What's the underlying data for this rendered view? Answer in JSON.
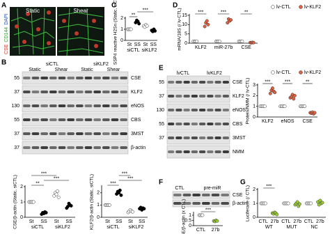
{
  "figure": {
    "panel_labels": [
      "A",
      "B",
      "C",
      "D",
      "E",
      "F",
      "G"
    ],
    "micrograph": {
      "conditions": [
        "Static",
        "Shear"
      ],
      "stain_labels": [
        "CSE",
        "CD144",
        "DAPI"
      ]
    },
    "blot_b": {
      "groups": [
        "siCTL",
        "siKLF2"
      ],
      "conditions": [
        "Static",
        "Shear",
        "Static",
        "Shear"
      ],
      "bands": [
        "CSE",
        "KLF2",
        "eNOS",
        "CBS",
        "3MST",
        "β-actin"
      ],
      "mw": [
        55,
        37,
        130,
        55,
        37,
        37
      ]
    },
    "blot_e": {
      "groups": [
        "lvCTL",
        "lvKLF2"
      ],
      "bands": [
        "CSE",
        "KLF2",
        "eNOS",
        "CBS",
        "3MST",
        "NMM"
      ],
      "mw": [
        55,
        37,
        130,
        55,
        37
      ]
    },
    "blot_f": {
      "groups": [
        "CTL",
        "pre-miR"
      ],
      "bands": [
        "CSE",
        "β-actin"
      ]
    }
  },
  "chart_data": [
    {
      "type": "dot",
      "ylabel": "CSE/β-actin (Static, siCTL)",
      "ylim": [
        0,
        2
      ],
      "yticks": [
        0,
        1,
        2
      ],
      "categories": [
        "St",
        "SS",
        "St",
        "SS"
      ],
      "groups": [
        "siCTL",
        "siKLF2"
      ],
      "colors": [
        "#ffffff",
        "#000000",
        "#ffffff",
        "#000000"
      ],
      "series": [
        {
          "values": [
            [
              1,
              1,
              1,
              1,
              1
            ],
            [
              0.2,
              0.3,
              0.25,
              0.35,
              0.3
            ],
            [
              1.4,
              1.6,
              1.5,
              1.7,
              1.3
            ],
            [
              0.6,
              0.7,
              0.9,
              0.8,
              0.75
            ]
          ]
        }
      ],
      "annotations": [
        "**",
        "***",
        "***"
      ]
    },
    {
      "type": "dot",
      "ylabel": "KLF2/β-actin (Static, siCTL)",
      "ylim": [
        0,
        2.5
      ],
      "yticks": [
        0,
        1,
        2
      ],
      "categories": [
        "St",
        "SS",
        "St",
        "SS"
      ],
      "groups": [
        "siCTL",
        "siKLF2"
      ],
      "colors": [
        "#ffffff",
        "#000000",
        "#ffffff",
        "#000000"
      ],
      "series": [
        {
          "values": [
            [
              1,
              1,
              1,
              1,
              1
            ],
            [
              1.9,
              2.1,
              2.0,
              2.2,
              1.8
            ],
            [
              0.4,
              0.5,
              0.6,
              0.5,
              0.45
            ],
            [
              0.7,
              0.8,
              0.6,
              0.75,
              0.7
            ]
          ]
        }
      ],
      "annotations": [
        "***",
        "***",
        "***"
      ]
    },
    {
      "type": "dot",
      "ylabel": "SSP4 reactive H2Sn (Static, siCTL)",
      "ylim": [
        0,
        2
      ],
      "yticks": [
        0,
        1,
        2
      ],
      "categories": [
        "St",
        "SS",
        "St",
        "SS"
      ],
      "groups": [
        "siCTL",
        "siKLF2"
      ],
      "colors": [
        "#ffffff",
        "#000000",
        "#ffffff",
        "#000000"
      ],
      "series": [
        {
          "values": [
            [
              1,
              1,
              1,
              1
            ],
            [
              1.6,
              1.8,
              1.7,
              1.5
            ],
            [
              1.3,
              1.2,
              1.4,
              1.3
            ],
            [
              0.9,
              0.8,
              1.0,
              0.85
            ]
          ]
        }
      ],
      "annotations": [
        "**",
        "***"
      ]
    },
    {
      "type": "dot",
      "ylabel": "mRNA/18S (/ lv-CTL)",
      "ylim": [
        0,
        15
      ],
      "yticks": [
        0,
        5,
        10,
        15
      ],
      "categories": [
        "KLF2",
        "miR-27b",
        "CSE"
      ],
      "series": [
        {
          "name": "lv-CTL",
          "color": "#ffffff",
          "values": [
            [
              1,
              1,
              1,
              1
            ],
            [
              1,
              1,
              1,
              1
            ],
            [
              1,
              1,
              1,
              1
            ]
          ]
        },
        {
          "name": "lv-KLF2",
          "color": "#e0603f",
          "values": [
            [
              9,
              11,
              12,
              10
            ],
            [
              11,
              13,
              12,
              12.5
            ],
            [
              0.3,
              0.2,
              0.4,
              0.3
            ]
          ]
        }
      ],
      "annotations": [
        "***",
        "***",
        "**"
      ]
    },
    {
      "type": "dot",
      "ylabel": "Protein/NMM (/ lv-CTL)",
      "ylim": [
        0,
        3
      ],
      "yticks": [
        0,
        1,
        2,
        3
      ],
      "categories": [
        "KLF2",
        "eNOS",
        "CSE"
      ],
      "series": [
        {
          "name": "lv-CTL",
          "color": "#ffffff",
          "values": [
            [
              1,
              1,
              1,
              1,
              1
            ],
            [
              1,
              1,
              1,
              1,
              1
            ],
            [
              1,
              1,
              1,
              1,
              1
            ]
          ]
        },
        {
          "name": "lv-KLF2",
          "color": "#e0603f",
          "values": [
            [
              2.2,
              2.5,
              2.7,
              2.4,
              2.3
            ],
            [
              1.8,
              1.9,
              2.1,
              1.7,
              2.0
            ],
            [
              0.4,
              0.35,
              0.45,
              0.3,
              0.4
            ]
          ]
        }
      ],
      "annotations": [
        "***",
        "***",
        "**"
      ]
    },
    {
      "type": "dot",
      "ylabel": "CSE/β-actin (x CTL)",
      "ylim": [
        0,
        1.2
      ],
      "yticks": [
        0,
        0.5,
        1
      ],
      "categories": [
        "CTL",
        "27b"
      ],
      "colors": [
        "#ffffff",
        "#9acd32"
      ],
      "series": [
        {
          "values": [
            [
              1,
              1,
              1,
              1
            ],
            [
              0.45,
              0.4,
              0.5,
              0.45
            ]
          ]
        }
      ],
      "annotations": [
        "***"
      ]
    },
    {
      "type": "dot",
      "ylabel": "Luciferase (/ CTL)",
      "ylim": [
        0,
        2
      ],
      "yticks": [
        0,
        1,
        2
      ],
      "categories": [
        "CTL",
        "27b",
        "CTL",
        "27b",
        "CTL",
        "27b"
      ],
      "groups": [
        "WT",
        "MUT",
        "NC"
      ],
      "colors": [
        "#ffffff",
        "#9acd32",
        "#ffffff",
        "#9acd32",
        "#ffffff",
        "#9acd32"
      ],
      "series": [
        {
          "values": [
            [
              1,
              1,
              1,
              1,
              1
            ],
            [
              0.3,
              0.25,
              0.35,
              0.3,
              0.2
            ],
            [
              1,
              1,
              1,
              1,
              1
            ],
            [
              0.9,
              1.0,
              1.1,
              0.8,
              0.95
            ],
            [
              1,
              1,
              1,
              1,
              1
            ],
            [
              1.1,
              0.9,
              1.2,
              1.0,
              1.05
            ]
          ]
        }
      ],
      "annotations": [
        "***"
      ]
    }
  ]
}
